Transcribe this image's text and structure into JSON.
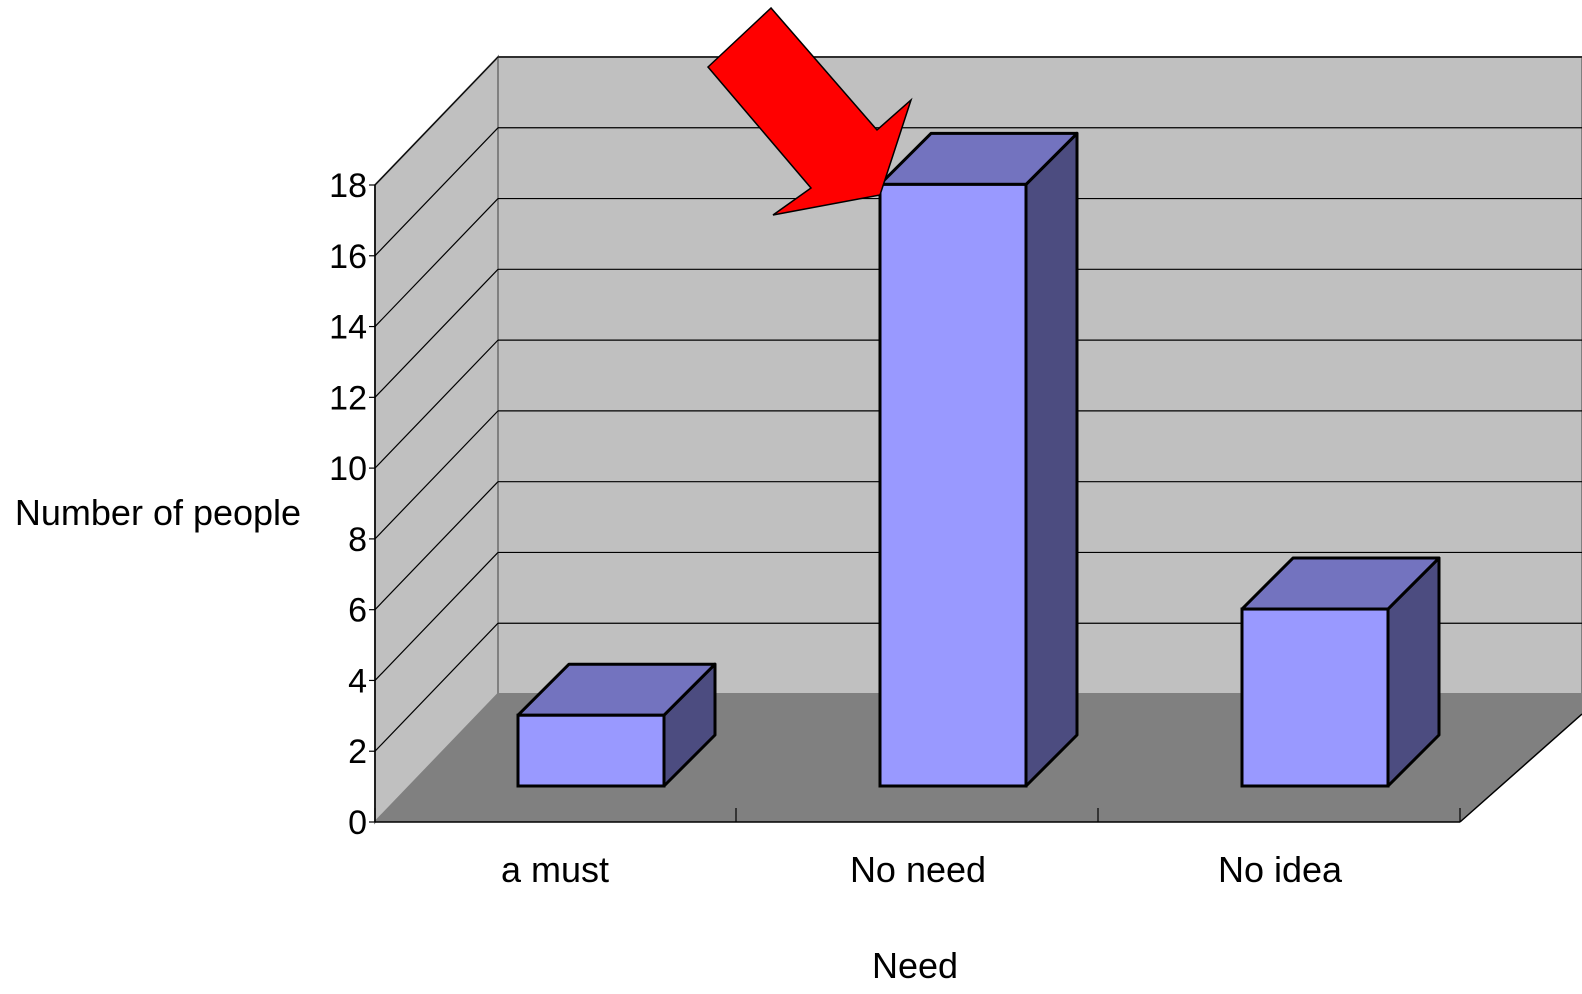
{
  "chart_data": {
    "type": "bar",
    "title": "",
    "xlabel": "Need",
    "ylabel": "Number of people",
    "categories": [
      "a must",
      "No need",
      "No idea"
    ],
    "series": [
      {
        "values": [
          2,
          17,
          5
        ]
      }
    ],
    "ylim": [
      0,
      18
    ],
    "yticks": [
      "0",
      "2",
      "4",
      "6",
      "8",
      "10",
      "12",
      "14",
      "16",
      "18"
    ],
    "grid": true,
    "three_d": true,
    "highlight": {
      "category": "No need",
      "marker": "red-arrow"
    },
    "colors": {
      "bar_front": "#9999ff",
      "bar_top": "#7373bf",
      "bar_side": "#4c4c80",
      "back_wall": "#c0c0c0",
      "side_wall": "#c0c0c0",
      "floor": "#808080",
      "arrow": "#ff0000",
      "gridline": "#000000"
    }
  }
}
